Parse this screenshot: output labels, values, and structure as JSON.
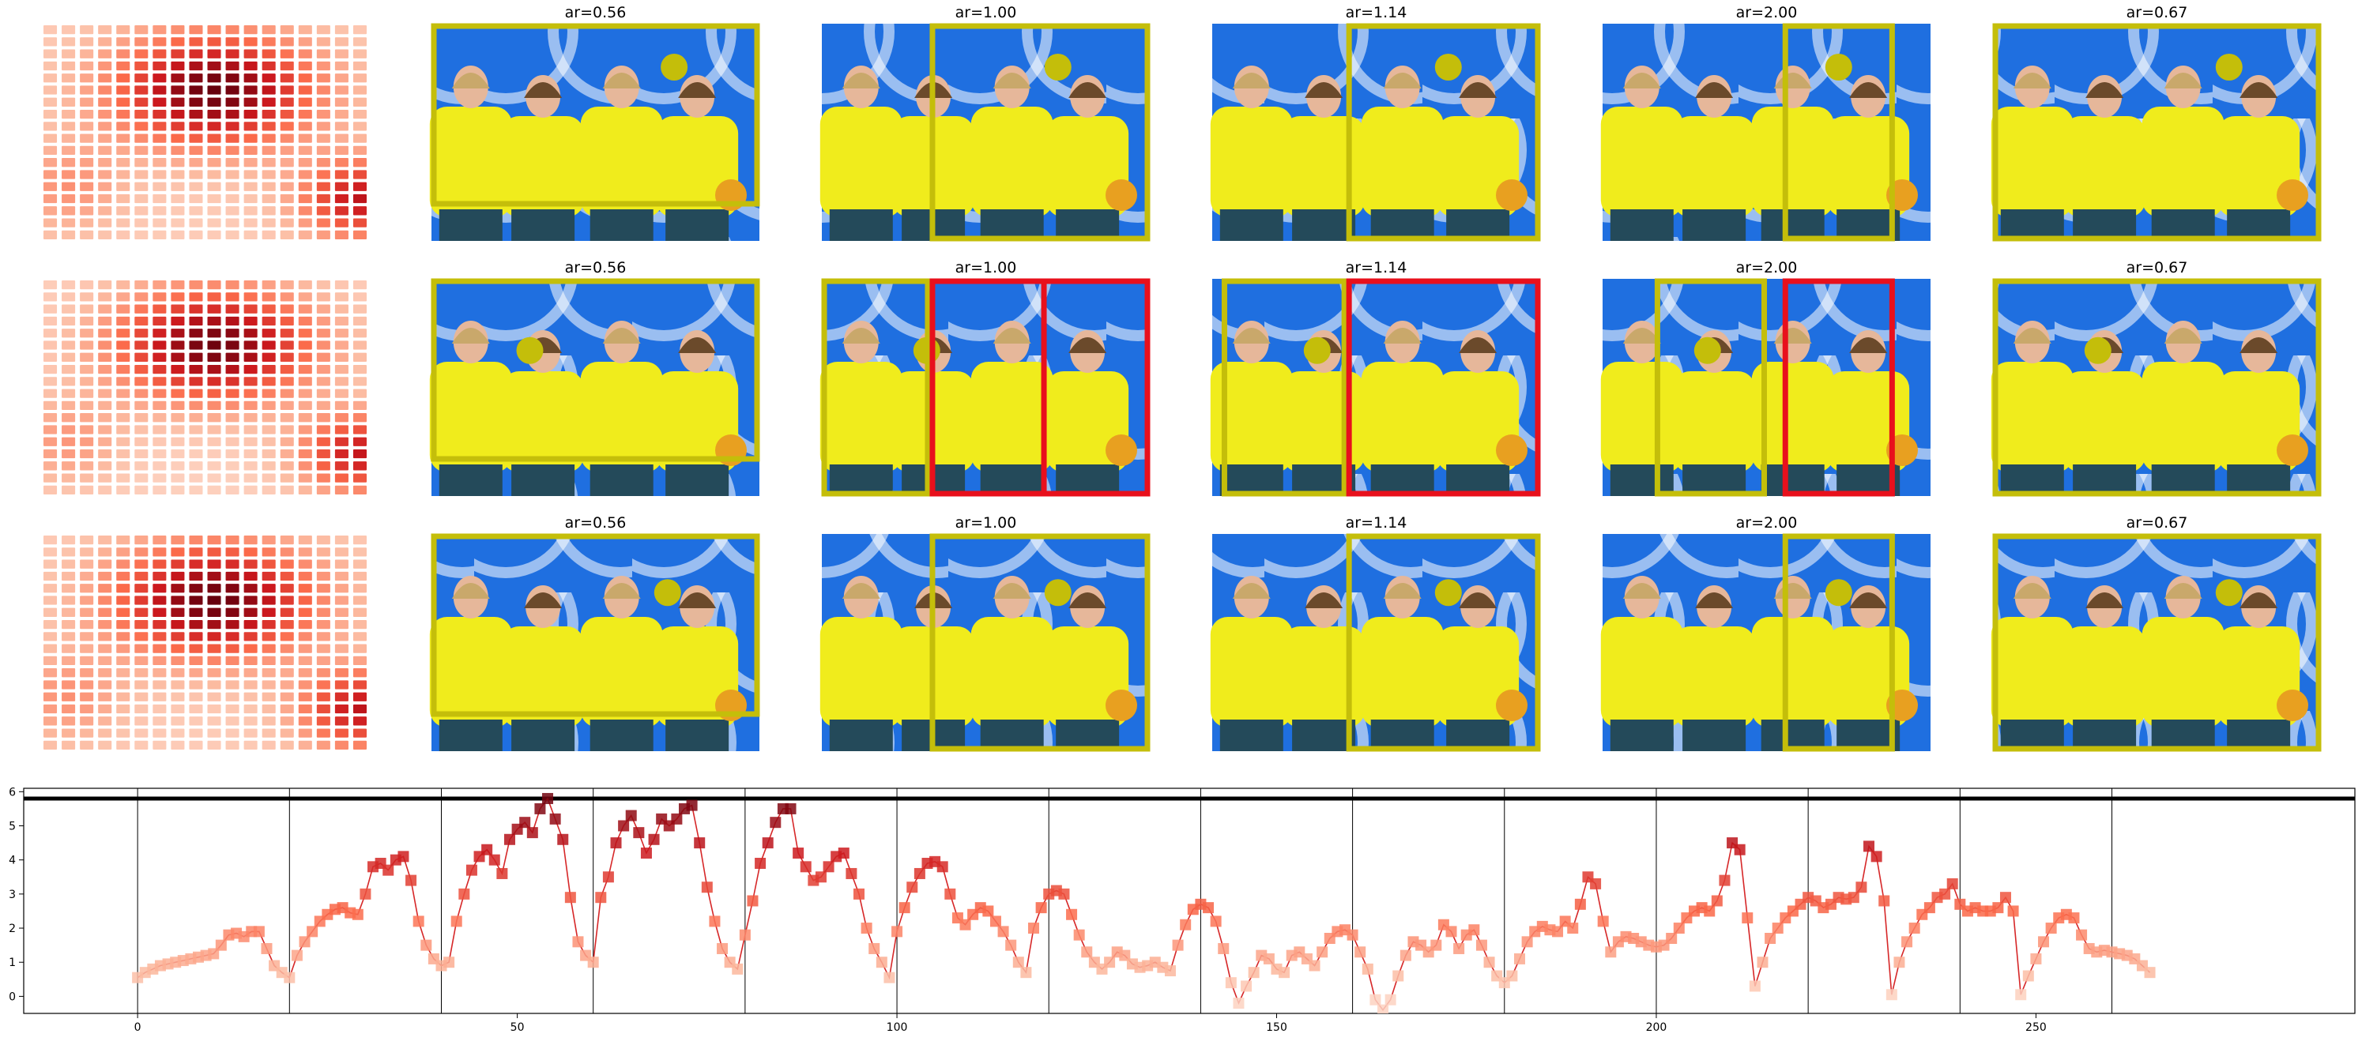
{
  "figure": {
    "grid": {
      "rows": 3,
      "columns": 6,
      "panel_titles": [
        "",
        "ar=0.56",
        "ar=1.00",
        "ar=1.14",
        "ar=2.00",
        "ar=0.67"
      ],
      "box_color_main": "#c4be0a",
      "box_color_alt": "#e8101c",
      "photo_background": "#1f6fe0",
      "jacket_color": "#f0ec1c"
    },
    "heatmap": {
      "type": "heatmap",
      "size": 18,
      "colormap": "Reds",
      "note_values": "red intensity 0-1 per cell"
    }
  },
  "chart_data": {
    "type": "line",
    "marker": "square",
    "color": "#d62728",
    "xlim": [
      -15,
      292
    ],
    "ylim": [
      -0.5,
      6.1
    ],
    "xticks": [
      0,
      50,
      100,
      150,
      200,
      250
    ],
    "yticks": [
      0,
      1,
      2,
      3,
      4,
      5,
      6
    ],
    "hline": 5.8,
    "vlines": [
      0,
      20,
      40,
      60,
      80,
      100,
      120,
      140,
      160,
      180,
      200,
      220,
      240,
      260
    ],
    "grid": false,
    "series": [
      {
        "values": [
          0.55,
          0.7,
          0.8,
          0.9,
          0.95,
          1.0,
          1.05,
          1.1,
          1.15,
          1.2,
          1.25,
          1.5,
          1.8,
          1.85,
          1.75,
          1.9,
          1.9,
          1.4,
          0.9,
          0.7,
          0.55,
          1.2,
          1.6,
          1.9,
          2.2,
          2.4,
          2.55,
          2.6,
          2.45,
          2.4,
          3.0,
          3.8,
          3.9,
          3.7,
          4.0,
          4.1,
          3.4,
          2.2,
          1.5,
          1.1,
          0.9,
          1.0,
          2.2,
          3.0,
          3.7,
          4.1,
          4.3,
          4.0,
          3.6,
          4.6,
          4.9,
          5.1,
          4.8,
          5.5,
          5.8,
          5.2,
          4.6,
          2.9,
          1.6,
          1.2,
          1.0,
          2.9,
          3.5,
          4.5,
          5.0,
          5.3,
          4.8,
          4.2,
          4.6,
          5.2,
          5.0,
          5.2,
          5.5,
          5.6,
          4.5,
          3.2,
          2.2,
          1.4,
          1.0,
          0.8,
          1.8,
          2.8,
          3.9,
          4.5,
          5.1,
          5.5,
          5.5,
          4.2,
          3.8,
          3.4,
          3.5,
          3.8,
          4.1,
          4.2,
          3.6,
          3.0,
          2.0,
          1.4,
          1.0,
          0.55,
          1.9,
          2.6,
          3.2,
          3.6,
          3.9,
          3.95,
          3.8,
          3.0,
          2.3,
          2.1,
          2.4,
          2.6,
          2.5,
          2.2,
          1.9,
          1.5,
          1.0,
          0.7,
          2.0,
          2.6,
          3.0,
          3.1,
          3.0,
          2.4,
          1.8,
          1.3,
          1.0,
          0.8,
          1.0,
          1.3,
          1.2,
          0.95,
          0.85,
          0.9,
          1.0,
          0.85,
          0.75,
          1.5,
          2.1,
          2.55,
          2.7,
          2.6,
          2.2,
          1.4,
          0.4,
          -0.2,
          0.3,
          0.7,
          1.2,
          1.1,
          0.8,
          0.7,
          1.2,
          1.3,
          1.1,
          0.9,
          1.3,
          1.7,
          1.9,
          1.95,
          1.8,
          1.3,
          0.8,
          -0.1,
          -0.4,
          -0.1,
          0.6,
          1.2,
          1.6,
          1.5,
          1.3,
          1.5,
          2.1,
          1.9,
          1.4,
          1.8,
          1.95,
          1.5,
          1.0,
          0.6,
          0.4,
          0.6,
          1.1,
          1.6,
          1.9,
          2.05,
          1.95,
          1.9,
          2.2,
          2.0,
          2.7,
          3.5,
          3.3,
          2.2,
          1.3,
          1.6,
          1.75,
          1.7,
          1.6,
          1.5,
          1.45,
          1.5,
          1.7,
          2.0,
          2.3,
          2.5,
          2.6,
          2.5,
          2.8,
          3.4,
          4.5,
          4.3,
          2.3,
          0.3,
          1.0,
          1.7,
          2.0,
          2.3,
          2.5,
          2.7,
          2.9,
          2.8,
          2.6,
          2.7,
          2.9,
          2.85,
          2.9,
          3.2,
          4.4,
          4.1,
          2.8,
          0.05,
          1.0,
          1.6,
          2.0,
          2.4,
          2.6,
          2.9,
          3.0,
          3.3,
          2.7,
          2.5,
          2.6,
          2.5,
          2.5,
          2.6,
          2.9,
          2.5,
          0.05,
          0.6,
          1.1,
          1.6,
          2.0,
          2.3,
          2.4,
          2.3,
          1.8,
          1.4,
          1.3,
          1.35,
          1.3,
          1.25,
          1.2,
          1.1,
          0.9,
          0.7
        ]
      }
    ]
  }
}
